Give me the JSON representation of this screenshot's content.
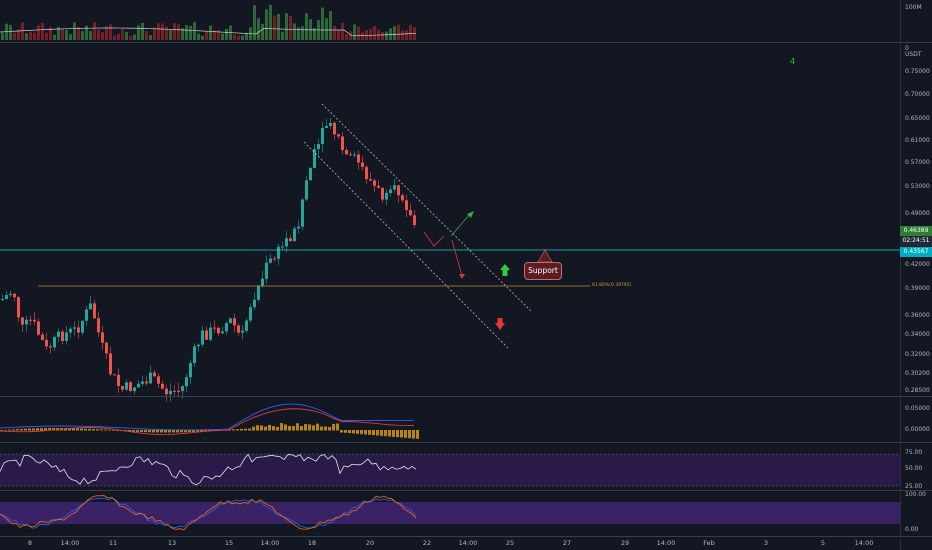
{
  "price_axis": {
    "volume_label": "100M",
    "currency_label": "USDT",
    "zero_label": "0",
    "price_ticks": [
      "0.75000",
      "0.70000",
      "0.65000",
      "0.61000",
      "0.57000",
      "0.53000",
      "0.49000",
      "0.42000",
      "0.39000",
      "0.36000",
      "0.34000",
      "0.32000",
      "0.30200",
      "0.28500"
    ],
    "current_price": "0.46389",
    "countdown": "02:24:51",
    "horizontal_line_price": "0.43567"
  },
  "macd_axis": [
    "0.05000",
    "0.00000"
  ],
  "rsi_axis": [
    "75.00",
    "50.00",
    "25.00"
  ],
  "stoch_axis": [
    "100.00",
    "0.00"
  ],
  "time_axis": [
    "8",
    "14:00",
    "11",
    "13",
    "15",
    "14:00",
    "18",
    "20",
    "22",
    "14:00",
    "25",
    "27",
    "29",
    "14:00",
    "Feb",
    "3",
    "5",
    "14:00"
  ],
  "annotations": {
    "support_label": "Support",
    "fib_label": "61.80%(0.39795)",
    "marker_number": "4"
  },
  "colors": {
    "background": "#131722",
    "bull": "#26a69a",
    "bear": "#ef5350",
    "current_price_tag": "#2e7d32",
    "line_tag": "#00bcd4",
    "rsi_band": "#2a1a4a"
  }
}
